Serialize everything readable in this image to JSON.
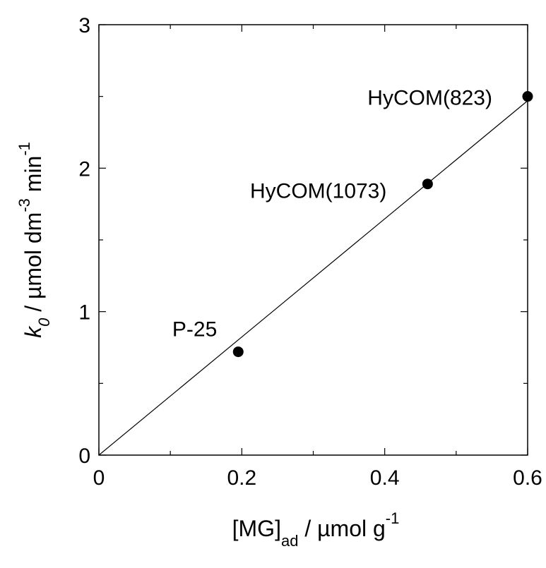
{
  "chart_data": {
    "type": "scatter",
    "x": [
      0.195,
      0.46,
      0.6
    ],
    "y": [
      0.72,
      1.89,
      2.5
    ],
    "point_labels": [
      "P-25",
      "HyCOM(1073)",
      "HyCOM(823)"
    ],
    "fit_line": {
      "x": [
        0,
        0.6
      ],
      "y": [
        0,
        2.47
      ]
    },
    "xlim": [
      0,
      0.6
    ],
    "ylim": [
      0,
      3
    ],
    "x_ticks": [
      "0",
      "0.2",
      "0.4",
      "0.6"
    ],
    "x_tick_values": [
      0,
      0.2,
      0.4,
      0.6
    ],
    "y_ticks": [
      "0",
      "1",
      "2",
      "3"
    ],
    "y_tick_values": [
      0,
      1,
      2,
      3
    ],
    "x_minor_tick_values": [
      0.1,
      0.3,
      0.5
    ],
    "y_minor_tick_values": [
      0.5,
      1.5,
      2.5
    ],
    "xlabel": {
      "main": "[MG]",
      "sub": "ad",
      "rest": " / µmol g",
      "sup": "-1"
    },
    "ylabel": {
      "k": "k",
      "k_sub": "0",
      "part1": " / µmol dm",
      "sup1": "-3",
      "part2": " min",
      "sup2": "-1"
    },
    "grid": false,
    "legend": "none"
  }
}
